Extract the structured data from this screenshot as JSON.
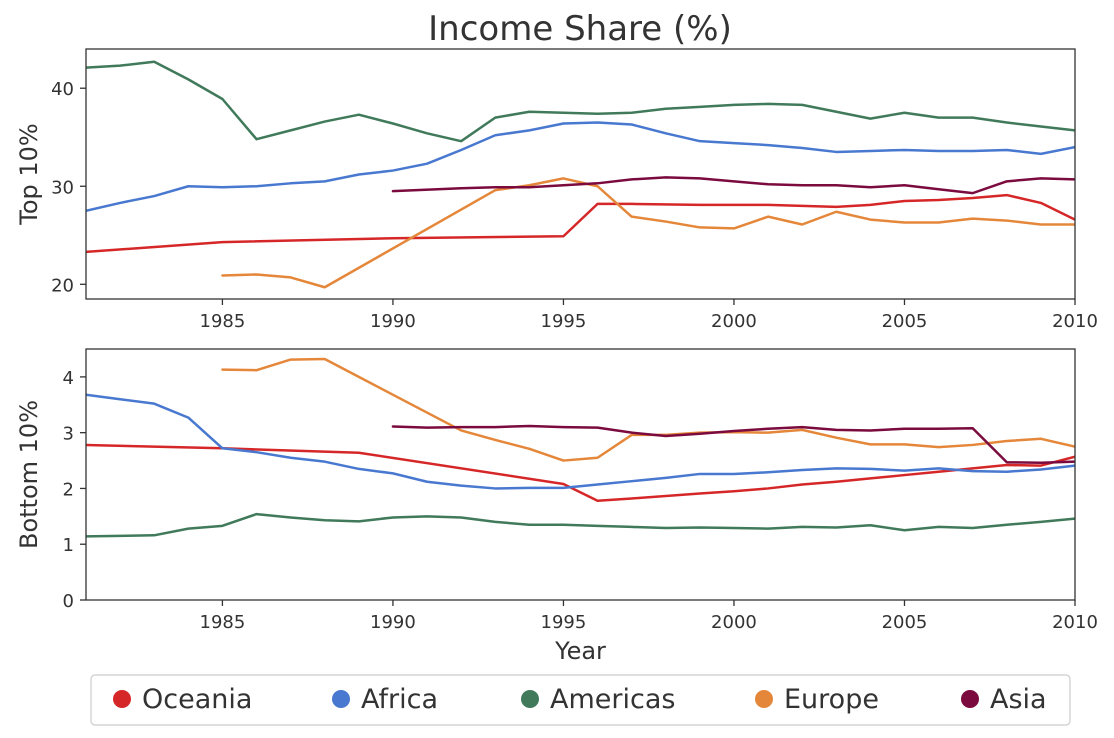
{
  "title": "Income Share (%)",
  "legend": {
    "placement": "bottom",
    "items": [
      {
        "label": "Oceania",
        "color": "#d62728"
      },
      {
        "label": "Africa",
        "color": "#4878cf"
      },
      {
        "label": "Americas",
        "color": "#407a5a"
      },
      {
        "label": "Europe",
        "color": "#e5873a"
      },
      {
        "label": "Asia",
        "color": "#7b0a3e"
      }
    ]
  },
  "chart_data": [
    {
      "type": "line",
      "title": "Income Share (%)",
      "xlabel": "",
      "ylabel": "Top 10%",
      "xlim": [
        1981,
        2010
      ],
      "ylim": [
        18.5,
        44
      ],
      "xticks": [
        1985,
        1990,
        1995,
        2000,
        2005,
        2010
      ],
      "yticks": [
        20,
        30,
        40
      ],
      "grid": false,
      "series": [
        {
          "name": "Oceania",
          "color": "#d62728",
          "x": [
            1981,
            1985,
            1990,
            1995,
            1996,
            1997,
            1999,
            2000,
            2001,
            2002,
            2003,
            2004,
            2005,
            2006,
            2007,
            2008,
            2009,
            2010
          ],
          "y": [
            23.3,
            24.3,
            24.7,
            24.9,
            28.2,
            28.2,
            28.1,
            28.1,
            28.1,
            28.0,
            27.9,
            28.1,
            28.5,
            28.6,
            28.8,
            29.1,
            28.3,
            26.6
          ]
        },
        {
          "name": "Africa",
          "color": "#4878cf",
          "x": [
            1981,
            1982,
            1983,
            1984,
            1985,
            1986,
            1987,
            1988,
            1989,
            1990,
            1991,
            1992,
            1993,
            1994,
            1995,
            1996,
            1997,
            1998,
            1999,
            2000,
            2001,
            2002,
            2003,
            2004,
            2005,
            2006,
            2007,
            2008,
            2009,
            2010
          ],
          "y": [
            27.5,
            28.3,
            29.0,
            30.0,
            29.9,
            30.0,
            30.3,
            30.5,
            31.2,
            31.6,
            32.3,
            33.7,
            35.2,
            35.7,
            36.4,
            36.5,
            36.3,
            35.4,
            34.6,
            34.4,
            34.2,
            33.9,
            33.5,
            33.6,
            33.7,
            33.6,
            33.6,
            33.7,
            33.3,
            34.0
          ]
        },
        {
          "name": "Americas",
          "color": "#407a5a",
          "x": [
            1981,
            1982,
            1983,
            1984,
            1985,
            1986,
            1987,
            1988,
            1989,
            1990,
            1991,
            1992,
            1993,
            1994,
            1995,
            1996,
            1997,
            1998,
            1999,
            2000,
            2001,
            2002,
            2003,
            2004,
            2005,
            2006,
            2007,
            2008,
            2009,
            2010
          ],
          "y": [
            42.1,
            42.3,
            42.7,
            40.9,
            38.9,
            34.8,
            35.7,
            36.6,
            37.3,
            36.4,
            35.4,
            34.6,
            37.0,
            37.6,
            37.5,
            37.4,
            37.5,
            37.9,
            38.1,
            38.3,
            38.4,
            38.3,
            37.6,
            36.9,
            37.5,
            37.0,
            37.0,
            36.5,
            36.1,
            35.7
          ]
        },
        {
          "name": "Europe",
          "color": "#e5873a",
          "x": [
            1985,
            1986,
            1987,
            1988,
            1993,
            1994,
            1995,
            1996,
            1997,
            1998,
            1999,
            2000,
            2001,
            2002,
            2003,
            2004,
            2005,
            2006,
            2007,
            2008,
            2009,
            2010
          ],
          "y": [
            20.9,
            21.0,
            20.7,
            19.7,
            29.6,
            30.1,
            30.8,
            30.0,
            26.9,
            26.4,
            25.8,
            25.7,
            26.9,
            26.1,
            27.4,
            26.6,
            26.3,
            26.3,
            26.7,
            26.5,
            26.1,
            26.1
          ]
        },
        {
          "name": "Asia",
          "color": "#7b0a3e",
          "x": [
            1990,
            1992,
            1993,
            1994,
            1995,
            1996,
            1997,
            1998,
            1999,
            2000,
            2001,
            2002,
            2003,
            2004,
            2005,
            2006,
            2007,
            2008,
            2009,
            2010
          ],
          "y": [
            29.5,
            29.8,
            29.9,
            29.9,
            30.1,
            30.3,
            30.7,
            30.9,
            30.8,
            30.5,
            30.2,
            30.1,
            30.1,
            29.9,
            30.1,
            29.7,
            29.3,
            30.5,
            30.8,
            30.7
          ]
        }
      ]
    },
    {
      "type": "line",
      "xlabel": "Year",
      "ylabel": "Bottom 10%",
      "xlim": [
        1981,
        2010
      ],
      "ylim": [
        0,
        4.5
      ],
      "xticks": [
        1985,
        1990,
        1995,
        2000,
        2005,
        2010
      ],
      "yticks": [
        0,
        1,
        2,
        3,
        4
      ],
      "grid": false,
      "series": [
        {
          "name": "Oceania",
          "color": "#d62728",
          "x": [
            1981,
            1985,
            1989,
            1995,
            1996,
            1997,
            1999,
            2000,
            2001,
            2002,
            2003,
            2004,
            2005,
            2006,
            2007,
            2008,
            2009,
            2010
          ],
          "y": [
            2.78,
            2.72,
            2.64,
            2.08,
            1.78,
            1.82,
            1.91,
            1.95,
            2.0,
            2.07,
            2.12,
            2.18,
            2.24,
            2.3,
            2.36,
            2.42,
            2.41,
            2.57
          ]
        },
        {
          "name": "Africa",
          "color": "#4878cf",
          "x": [
            1981,
            1982,
            1983,
            1984,
            1985,
            1986,
            1987,
            1988,
            1989,
            1990,
            1991,
            1992,
            1993,
            1994,
            1995,
            1996,
            1997,
            1998,
            1999,
            2000,
            2001,
            2002,
            2003,
            2004,
            2005,
            2006,
            2007,
            2008,
            2009,
            2010
          ],
          "y": [
            3.68,
            3.6,
            3.52,
            3.27,
            2.72,
            2.65,
            2.55,
            2.48,
            2.35,
            2.27,
            2.12,
            2.05,
            2.0,
            2.01,
            2.01,
            2.07,
            2.13,
            2.19,
            2.26,
            2.26,
            2.29,
            2.33,
            2.36,
            2.35,
            2.32,
            2.36,
            2.31,
            2.3,
            2.34,
            2.41
          ]
        },
        {
          "name": "Americas",
          "color": "#407a5a",
          "x": [
            1981,
            1983,
            1984,
            1985,
            1986,
            1987,
            1988,
            1989,
            1990,
            1991,
            1992,
            1993,
            1994,
            1995,
            1996,
            1997,
            1998,
            1999,
            2000,
            2001,
            2002,
            2003,
            2004,
            2005,
            2006,
            2007,
            2008,
            2009,
            2010
          ],
          "y": [
            1.14,
            1.16,
            1.28,
            1.33,
            1.54,
            1.48,
            1.43,
            1.41,
            1.48,
            1.5,
            1.48,
            1.4,
            1.35,
            1.35,
            1.33,
            1.31,
            1.29,
            1.3,
            1.29,
            1.28,
            1.31,
            1.3,
            1.34,
            1.25,
            1.31,
            1.29,
            1.35,
            1.4,
            1.46
          ]
        },
        {
          "name": "Europe",
          "color": "#e5873a",
          "x": [
            1985,
            1986,
            1987,
            1988,
            1992,
            1993,
            1994,
            1995,
            1996,
            1997,
            1998,
            1999,
            2000,
            2001,
            2002,
            2003,
            2004,
            2005,
            2006,
            2007,
            2008,
            2009,
            2010
          ],
          "y": [
            4.13,
            4.12,
            4.31,
            4.32,
            3.04,
            2.87,
            2.71,
            2.5,
            2.55,
            2.96,
            2.96,
            3.0,
            3.01,
            3.0,
            3.05,
            2.91,
            2.79,
            2.79,
            2.74,
            2.78,
            2.85,
            2.89,
            2.75
          ]
        },
        {
          "name": "Asia",
          "color": "#7b0a3e",
          "x": [
            1990,
            1991,
            1992,
            1993,
            1994,
            1995,
            1996,
            1997,
            1998,
            1999,
            2000,
            2001,
            2002,
            2003,
            2004,
            2005,
            2006,
            2007,
            2008,
            2009,
            2010
          ],
          "y": [
            3.11,
            3.09,
            3.1,
            3.1,
            3.12,
            3.1,
            3.09,
            3.0,
            2.94,
            2.98,
            3.03,
            3.07,
            3.1,
            3.05,
            3.04,
            3.07,
            3.07,
            3.08,
            2.47,
            2.46,
            2.48
          ]
        }
      ]
    }
  ]
}
